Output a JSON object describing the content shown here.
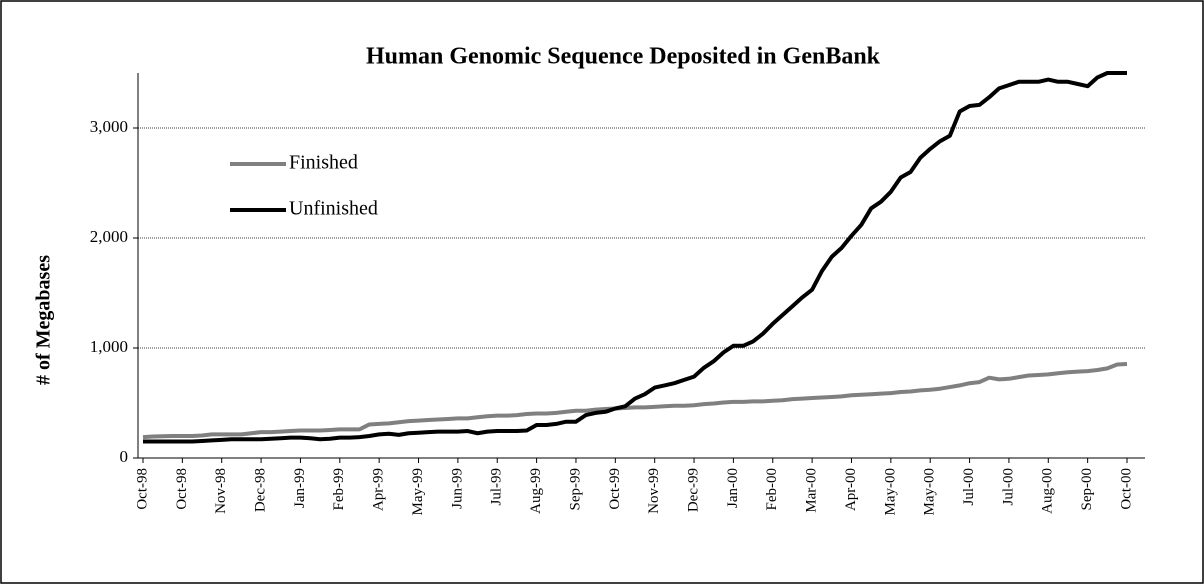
{
  "chart_data": {
    "type": "line",
    "title": "Human Genomic Sequence Deposited in GenBank",
    "y_label": "# of Megabases",
    "categories": [
      "Oct-98",
      null,
      null,
      null,
      "Oct-98",
      null,
      null,
      null,
      "Nov-98",
      null,
      null,
      null,
      "Dec-98",
      null,
      null,
      null,
      "Jan-99",
      null,
      null,
      null,
      "Feb-99",
      null,
      null,
      null,
      "Apr-99",
      null,
      null,
      null,
      "May-99",
      null,
      null,
      null,
      "Jun-99",
      null,
      null,
      null,
      "Jul-99",
      null,
      null,
      null,
      "Aug-99",
      null,
      null,
      null,
      "Sep-99",
      null,
      null,
      null,
      "Oct-99",
      null,
      null,
      null,
      "Nov-99",
      null,
      null,
      null,
      "Dec-99",
      null,
      null,
      null,
      "Jan-00",
      null,
      null,
      null,
      "Feb-00",
      null,
      null,
      null,
      "Mar-00",
      null,
      null,
      null,
      "Apr-00",
      null,
      null,
      null,
      "May-00",
      null,
      null,
      null,
      "May-00",
      null,
      null,
      null,
      "Jul-00",
      null,
      null,
      null,
      "Jul-00",
      null,
      null,
      null,
      "Aug-00",
      null,
      null,
      null,
      "Sep-00",
      null,
      null,
      null,
      "Oct-00"
    ],
    "series": [
      {
        "name": "Finished",
        "color": "#808080",
        "values": [
          190,
          195,
          198,
          200,
          200,
          200,
          205,
          215,
          215,
          215,
          215,
          225,
          235,
          235,
          240,
          245,
          250,
          250,
          250,
          255,
          260,
          260,
          260,
          305,
          310,
          315,
          325,
          335,
          340,
          345,
          350,
          355,
          360,
          360,
          370,
          380,
          385,
          385,
          390,
          400,
          405,
          405,
          410,
          420,
          430,
          430,
          440,
          445,
          450,
          455,
          460,
          460,
          465,
          470,
          475,
          475,
          480,
          490,
          495,
          505,
          510,
          510,
          515,
          515,
          520,
          525,
          535,
          540,
          545,
          550,
          555,
          560,
          570,
          575,
          580,
          585,
          590,
          600,
          605,
          615,
          620,
          630,
          645,
          660,
          680,
          690,
          730,
          715,
          720,
          735,
          750,
          755,
          760,
          770,
          780,
          785,
          790,
          800,
          815,
          850,
          855
        ]
      },
      {
        "name": "Unfinished",
        "color": "#000000",
        "values": [
          150,
          150,
          150,
          150,
          150,
          150,
          155,
          160,
          165,
          170,
          170,
          170,
          170,
          175,
          180,
          185,
          185,
          180,
          170,
          175,
          185,
          185,
          190,
          200,
          215,
          220,
          210,
          225,
          230,
          235,
          240,
          240,
          240,
          245,
          225,
          240,
          245,
          245,
          245,
          250,
          300,
          300,
          310,
          330,
          330,
          390,
          410,
          420,
          450,
          470,
          540,
          580,
          640,
          660,
          680,
          710,
          740,
          820,
          880,
          960,
          1020,
          1020,
          1060,
          1130,
          1220,
          1300,
          1380,
          1460,
          1530,
          1700,
          1830,
          1910,
          2020,
          2120,
          2270,
          2330,
          2420,
          2550,
          2600,
          2730,
          2810,
          2880,
          2930,
          3150,
          3200,
          3210,
          3280,
          3360,
          3390,
          3420,
          3420,
          3420,
          3440,
          3420,
          3420,
          3400,
          3380,
          3460,
          3500,
          3500,
          3500
        ]
      }
    ],
    "ylim": [
      0,
      3500
    ],
    "yticks": [
      0,
      {
        "value": 1000,
        "label": "1,000"
      },
      {
        "value": 2000,
        "label": "2,000"
      },
      {
        "value": 3000,
        "label": "3,000"
      }
    ],
    "grid": true
  }
}
